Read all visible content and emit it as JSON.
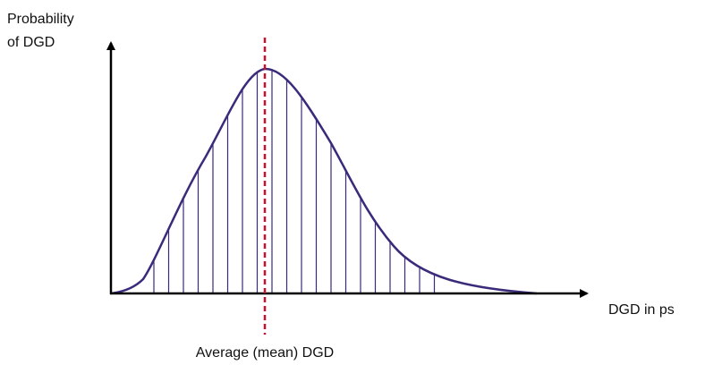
{
  "y_axis_label": [
    "Probability",
    "of DGD"
  ],
  "x_axis_label": "DGD in ps",
  "mean_label": "Average (mean) DGD"
}
